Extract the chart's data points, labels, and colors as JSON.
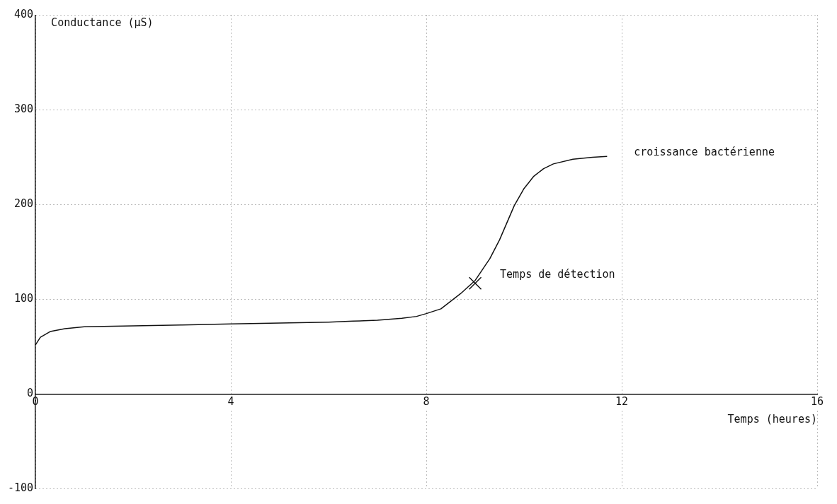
{
  "chart_data": {
    "type": "line",
    "ylabel": "Conductance (µS)",
    "xlabel": "Temps (heures)",
    "annotations": [
      "croissance bactérienne",
      {
        "text": "Temps de détection",
        "x": 9,
        "y": 117
      }
    ],
    "xlim": [
      0,
      16
    ],
    "xticks": [
      0,
      4,
      8,
      12,
      16
    ],
    "ylim": [
      -100,
      400
    ],
    "yticks": [
      -100,
      0,
      100,
      200,
      300,
      400
    ],
    "grid": true,
    "legend": false,
    "marker": "none",
    "line_style": "solid",
    "series": [
      {
        "color": "#111111",
        "x": [
          0,
          0.1,
          0.3,
          0.6,
          1,
          2,
          3,
          4,
          5,
          6,
          6.5,
          7,
          7.5,
          7.8,
          8,
          8.3,
          8.5,
          8.7,
          9,
          9.3,
          9.5,
          9.8,
          10,
          10.2,
          10.4,
          10.6,
          11,
          11.4,
          11.7
        ],
        "values": [
          52,
          60,
          66,
          69,
          71,
          72,
          73,
          74,
          75,
          76,
          77,
          78,
          80,
          82,
          85,
          90,
          98,
          106,
          120,
          143,
          163,
          199,
          217,
          230,
          238,
          243,
          248,
          250,
          251
        ]
      },
      {
        "type": "scatter",
        "marker": "cross",
        "color": "#111111",
        "x": [
          9
        ],
        "values": [
          117
        ]
      }
    ]
  }
}
